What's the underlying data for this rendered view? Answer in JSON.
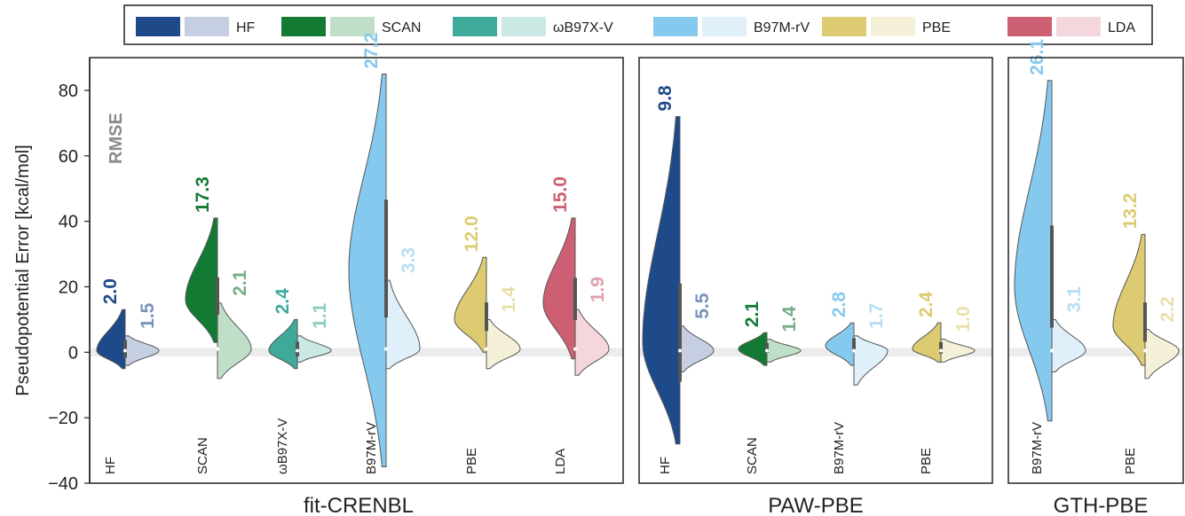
{
  "chart_data": {
    "type": "violin",
    "ylabel": "Pseudopotential Error [kcal/mol]",
    "ylim": [
      -40,
      90
    ],
    "yticks": [
      -40,
      -20,
      0,
      20,
      40,
      60,
      80
    ],
    "annotation": "RMSE",
    "legend": {
      "placement": "top",
      "entries": [
        {
          "name": "HF",
          "dark": "#1f4a8a",
          "light": "#c5cfe1"
        },
        {
          "name": "SCAN",
          "dark": "#137a34",
          "light": "#c0dfc8"
        },
        {
          "name": "ωB97X-V",
          "dark": "#3fa99a",
          "light": "#cbe9e4"
        },
        {
          "name": "B97M-rV",
          "dark": "#86c9ee",
          "light": "#dff0fa"
        },
        {
          "name": "PBE",
          "dark": "#dccb70",
          "light": "#f5f0d8"
        },
        {
          "name": "LDA",
          "dark": "#cd5f72",
          "light": "#f4d7dd"
        }
      ]
    },
    "panels": [
      {
        "name": "fit-CRENBL",
        "categories": [
          {
            "label": "HF",
            "method": "HF",
            "left_rmse": "2.0",
            "right_rmse": "1.5",
            "left": {
              "min": -5,
              "max": 13,
              "peak": 0.5
            },
            "right": {
              "min": -4,
              "max": 5,
              "peak": 0.5
            }
          },
          {
            "label": "SCAN",
            "method": "SCAN",
            "left_rmse": "17.3",
            "right_rmse": "2.1",
            "left": {
              "min": 3,
              "max": 41,
              "peak": 16
            },
            "right": {
              "min": -8,
              "max": 15,
              "peak": 1
            }
          },
          {
            "label": "ωB97X-V",
            "method": "ωB97X-V",
            "left_rmse": "2.4",
            "right_rmse": "1.1",
            "left": {
              "min": -5,
              "max": 10,
              "peak": 0.5
            },
            "right": {
              "min": -3,
              "max": 5,
              "peak": 0.5
            }
          },
          {
            "label": "B97M-rV",
            "method": "B97M-rV",
            "left_rmse": "27.2",
            "right_rmse": "3.3",
            "left": {
              "min": -35,
              "max": 85,
              "peak": 25
            },
            "right": {
              "min": -5,
              "max": 22,
              "peak": 1
            }
          },
          {
            "label": "PBE",
            "method": "PBE",
            "left_rmse": "12.0",
            "right_rmse": "1.4",
            "left": {
              "min": 0,
              "max": 29,
              "peak": 10
            },
            "right": {
              "min": -5,
              "max": 10,
              "peak": 1
            }
          },
          {
            "label": "LDA",
            "method": "LDA",
            "left_rmse": "15.0",
            "right_rmse": "1.9",
            "left": {
              "min": -2,
              "max": 41,
              "peak": 15
            },
            "right": {
              "min": -7,
              "max": 13,
              "peak": 1
            }
          }
        ]
      },
      {
        "name": "PAW-PBE",
        "categories": [
          {
            "label": "HF",
            "method": "HF",
            "left_rmse": "9.8",
            "right_rmse": "5.5",
            "left": {
              "min": -28,
              "max": 72,
              "peak": 3
            },
            "right": {
              "min": -6,
              "max": 8,
              "peak": 0.5
            }
          },
          {
            "label": "SCAN",
            "method": "SCAN",
            "left_rmse": "2.1",
            "right_rmse": "1.4",
            "left": {
              "min": -4,
              "max": 6,
              "peak": 1
            },
            "right": {
              "min": -3,
              "max": 4,
              "peak": 0.5
            }
          },
          {
            "label": "B97M-rV",
            "method": "B97M-rV",
            "left_rmse": "2.8",
            "right_rmse": "1.7",
            "left": {
              "min": -4,
              "max": 9,
              "peak": 2
            },
            "right": {
              "min": -10,
              "max": 5,
              "peak": 0.5
            }
          },
          {
            "label": "PBE",
            "method": "PBE",
            "left_rmse": "2.4",
            "right_rmse": "1.0",
            "left": {
              "min": -3,
              "max": 9,
              "peak": 1
            },
            "right": {
              "min": -3,
              "max": 4,
              "peak": 0.5
            }
          }
        ]
      },
      {
        "name": "GTH-PBE",
        "categories": [
          {
            "label": "B97M-rV",
            "method": "B97M-rV",
            "left_rmse": "26.1",
            "right_rmse": "3.1",
            "left": {
              "min": -21,
              "max": 83,
              "peak": 20
            },
            "right": {
              "min": -6,
              "max": 10,
              "peak": 0.5
            }
          },
          {
            "label": "PBE",
            "method": "PBE",
            "left_rmse": "13.2",
            "right_rmse": "2.2",
            "left": {
              "min": -4,
              "max": 36,
              "peak": 8
            },
            "right": {
              "min": -8,
              "max": 7,
              "peak": 0.5
            }
          }
        ]
      }
    ]
  }
}
